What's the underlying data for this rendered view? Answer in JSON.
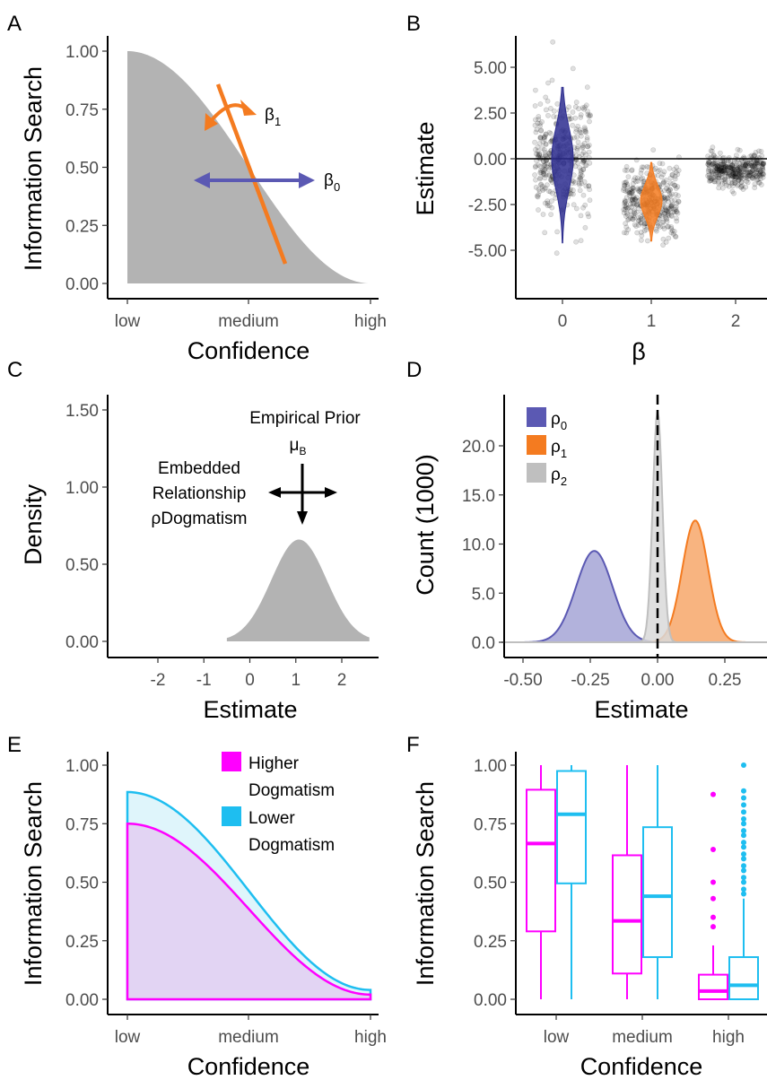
{
  "chart_data": [
    {
      "panel": "A",
      "type": "area",
      "xlabel": "Confidence",
      "ylabel": "Information Search",
      "x_tick_labels": [
        "low",
        "medium",
        "high"
      ],
      "y_ticks": [
        "0.00",
        "0.25",
        "0.50",
        "0.75",
        "1.00"
      ],
      "ylim": [
        0,
        1
      ],
      "annotations": [
        {
          "text": "β",
          "sub": "1",
          "meaning": "slope"
        },
        {
          "text": "β",
          "sub": "0",
          "meaning": "intercept"
        }
      ],
      "colors": {
        "area": "#b3b3b3",
        "slope": "#f47b20",
        "intercept": "#5b59b3"
      }
    },
    {
      "panel": "B",
      "type": "scatter",
      "xlabel": "β",
      "ylabel": "Estimate",
      "categories": [
        "0",
        "1",
        "2"
      ],
      "y_ticks": [
        "-5.00",
        "-2.50",
        "0.00",
        "2.50",
        "5.00"
      ],
      "ylim": [
        -6.5,
        6.5
      ],
      "series": [
        {
          "category": "0",
          "center": 0.0,
          "sd": 1.6,
          "violin_range": [
            -4.6,
            3.9
          ],
          "violin_color": "#2d2d8f"
        },
        {
          "category": "1",
          "center": -2.3,
          "sd": 1.0,
          "violin_range": [
            -4.5,
            -0.2
          ],
          "violin_color": "#f47b20"
        },
        {
          "category": "2",
          "center": -0.6,
          "sd": 0.45,
          "violin_range": null,
          "violin_color": null
        }
      ],
      "hline": 0
    },
    {
      "panel": "C",
      "type": "area",
      "xlabel": "Estimate",
      "ylabel": "Density",
      "x_ticks": [
        "-2",
        "-1",
        "0",
        "1",
        "2"
      ],
      "y_ticks": [
        "0.00",
        "0.50",
        "1.00",
        "1.50"
      ],
      "xlim": [
        -2.8,
        2.7
      ],
      "ylim": [
        -0.05,
        1.55
      ],
      "distribution": {
        "mean": 1.07,
        "sd": 0.6,
        "peak": 0.66
      },
      "annotations": {
        "top": "Empirical Prior",
        "top_symbol": "μ",
        "top_symbol_sub": "B",
        "left_lines": [
          "Embedded",
          "Relationship",
          "ρDogmatism"
        ]
      },
      "colors": {
        "area": "#b3b3b3"
      }
    },
    {
      "panel": "D",
      "type": "area",
      "xlabel": "Estimate",
      "ylabel": "Count (1000)",
      "x_ticks": [
        "-0.50",
        "-0.25",
        "0.00",
        "0.25"
      ],
      "y_ticks": [
        "0.0",
        "5.0",
        "10.0",
        "15.0",
        "20.0"
      ],
      "xlim": [
        -0.58,
        0.44
      ],
      "ylim": [
        -0.5,
        24
      ],
      "vline": 0,
      "series": [
        {
          "name": "ρ",
          "sub": "0",
          "mean": -0.235,
          "sd": 0.068,
          "peak": 9.3,
          "fill": "#a5a5d6",
          "stroke": "#5b59b3"
        },
        {
          "name": "ρ",
          "sub": "1",
          "mean": 0.14,
          "sd": 0.048,
          "peak": 12.4,
          "fill": "#f7a76a",
          "stroke": "#f47b20"
        },
        {
          "name": "ρ",
          "sub": "2",
          "mean": 0.0,
          "sd": 0.018,
          "peak": 23.5,
          "fill": "#d9d9d9",
          "stroke": "#bfbfbf"
        }
      ]
    },
    {
      "panel": "E",
      "type": "area",
      "xlabel": "Confidence",
      "ylabel": "Information Search",
      "x_tick_labels": [
        "low",
        "medium",
        "high"
      ],
      "y_ticks": [
        "0.00",
        "0.25",
        "0.50",
        "0.75",
        "1.00"
      ],
      "ylim": [
        0,
        1
      ],
      "series": [
        {
          "name_lines": [
            "Higher",
            "Dogmatism"
          ],
          "start": 0.75,
          "end": 0.02,
          "stroke": "#ff00ff",
          "fill": "#e2d4f3"
        },
        {
          "name_lines": [
            "Lower",
            "Dogmatism"
          ],
          "start": 0.885,
          "end": 0.04,
          "stroke": "#1ebef0",
          "fill": "#dff5fb"
        }
      ]
    },
    {
      "panel": "F",
      "type": "box",
      "xlabel": "Confidence",
      "ylabel": "Information Search",
      "categories": [
        "low",
        "medium",
        "high"
      ],
      "y_ticks": [
        "0.00",
        "0.25",
        "0.50",
        "0.75",
        "1.00"
      ],
      "ylim": [
        0,
        1
      ],
      "groups": [
        {
          "category": "low",
          "higher": {
            "min": 0,
            "q1": 0.29,
            "median": 0.665,
            "q3": 0.895,
            "max": 1.0
          },
          "lower": {
            "min": 0,
            "q1": 0.495,
            "median": 0.79,
            "q3": 0.975,
            "max": 1.0
          }
        },
        {
          "category": "medium",
          "higher": {
            "min": 0,
            "q1": 0.11,
            "median": 0.335,
            "q3": 0.615,
            "max": 1.0
          },
          "lower": {
            "min": 0,
            "q1": 0.18,
            "median": 0.44,
            "q3": 0.735,
            "max": 1.0
          }
        },
        {
          "category": "high",
          "higher": {
            "min": 0,
            "q1": 0.0,
            "median": 0.035,
            "q3": 0.105,
            "max": 0.23,
            "outliers": [
              0.31,
              0.35,
              0.43,
              0.5,
              0.64,
              0.875
            ]
          },
          "lower": {
            "min": 0,
            "q1": 0.0,
            "median": 0.06,
            "q3": 0.18,
            "max": 0.43,
            "outliers": [
              0.45,
              0.47,
              0.5,
              0.52,
              0.55,
              0.57,
              0.6,
              0.62,
              0.65,
              0.67,
              0.7,
              0.72,
              0.75,
              0.77,
              0.8,
              0.83,
              0.86,
              0.89,
              1.0
            ]
          }
        }
      ],
      "colors": {
        "higher": "#ff00ff",
        "lower": "#1ebef0"
      }
    }
  ],
  "panel_labels": [
    "A",
    "B",
    "C",
    "D",
    "E",
    "F"
  ]
}
